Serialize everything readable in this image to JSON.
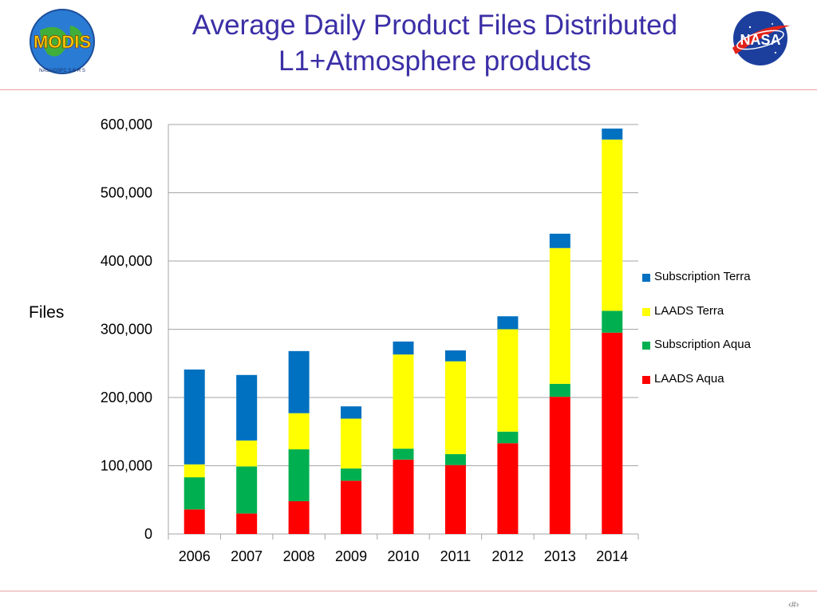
{
  "slide": {
    "title_line1": "Average Daily Product Files Distributed",
    "title_line2": "L1+Atmosphere products",
    "page_number": "‹#›"
  },
  "logos": {
    "left": {
      "name": "modis-logo",
      "text": "MODIS",
      "ring_text": "NASA/GSFC   S B R S",
      "color": "#2a7bd4"
    },
    "right": {
      "name": "nasa-logo",
      "text": "NASA",
      "color": "#1c3f9e"
    }
  },
  "colors": {
    "LAADS Aqua": "#ff0000",
    "Subscription Aqua": "#00b050",
    "LAADS Terra": "#ffff00",
    "Subscription Terra": "#0070c0",
    "grid": "#a6a6a6",
    "title": "#3b2fa6"
  },
  "chart_data": {
    "type": "bar",
    "stacked": true,
    "categories": [
      "2006",
      "2007",
      "2008",
      "2009",
      "2010",
      "2011",
      "2012",
      "2013",
      "2014"
    ],
    "series": [
      {
        "name": "LAADS Aqua",
        "values": [
          36000,
          30000,
          48000,
          78000,
          109000,
          101000,
          133000,
          201000,
          295000
        ]
      },
      {
        "name": "Subscription Aqua",
        "values": [
          47000,
          69000,
          76000,
          18000,
          16000,
          16000,
          17000,
          19000,
          32000
        ]
      },
      {
        "name": "LAADS Terra",
        "values": [
          19000,
          38000,
          53000,
          73000,
          138000,
          136000,
          150000,
          199000,
          251000
        ]
      },
      {
        "name": "Subscription Terra",
        "values": [
          139000,
          96000,
          91000,
          18000,
          19000,
          16000,
          19000,
          21000,
          16000
        ]
      }
    ],
    "title": "",
    "xlabel": "",
    "ylabel": "Files",
    "ylim": [
      0,
      600000
    ],
    "yticks": [
      "0",
      "100,000",
      "200,000",
      "300,000",
      "400,000",
      "500,000",
      "600,000"
    ],
    "ytick_values": [
      0,
      100000,
      200000,
      300000,
      400000,
      500000,
      600000
    ],
    "grid": true,
    "legend": {
      "position": "right",
      "entries": [
        "Subscription Terra",
        "LAADS Terra",
        "Subscription Aqua",
        "LAADS Aqua"
      ]
    }
  }
}
